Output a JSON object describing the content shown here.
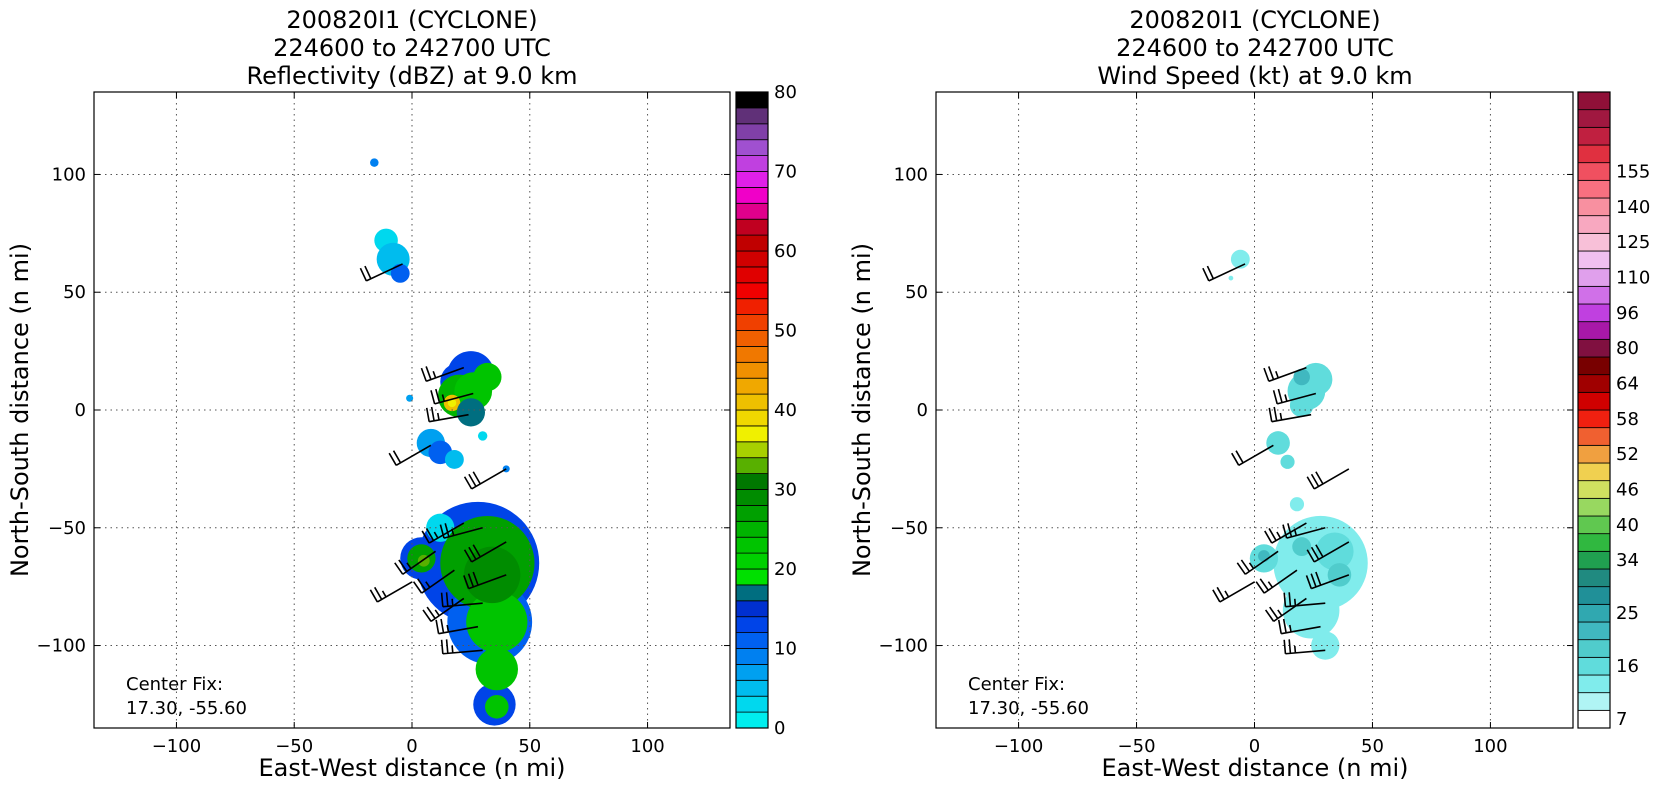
{
  "chart_data": [
    {
      "type": "heatmap",
      "title_lines": [
        "200820I1 (CYCLONE)",
        "224600 to 242700 UTC",
        "Reflectivity (dBZ) at 9.0 km"
      ],
      "xlabel": "East-West distance (n mi)",
      "ylabel": "North-South distance (n mi)",
      "xlim": [
        -135,
        135
      ],
      "ylim": [
        -135,
        135
      ],
      "xticks": [
        -100,
        -50,
        0,
        50,
        100
      ],
      "yticks": [
        -100,
        -50,
        0,
        50,
        100
      ],
      "grid": true,
      "annotation_lines": [
        "Center Fix:",
        "17.30, -55.60"
      ],
      "colorbar": {
        "min": 0,
        "max": 80,
        "ticks": [
          0,
          10,
          20,
          30,
          40,
          50,
          60,
          70,
          80
        ],
        "colors": [
          "#00eeee",
          "#00d8ee",
          "#00bcee",
          "#00a0f0",
          "#0080f0",
          "#0060f0",
          "#0044e8",
          "#0030d0",
          "#006e80",
          "#00e000",
          "#00d000",
          "#00c400",
          "#00b400",
          "#00a000",
          "#008c00",
          "#007800",
          "#58b000",
          "#a8d000",
          "#f0f000",
          "#f0d800",
          "#eec000",
          "#f0a800",
          "#f09000",
          "#f07800",
          "#f06000",
          "#f04000",
          "#f02000",
          "#f00000",
          "#e00000",
          "#d00000",
          "#c00000",
          "#c00020",
          "#e0008c",
          "#f000c8",
          "#e020e8",
          "#c040e0",
          "#a050d0",
          "#8040a8",
          "#603078",
          "#000000"
        ]
      },
      "echoes": [
        {
          "x": -16,
          "y": 105,
          "r": 1.8,
          "level": 4
        },
        {
          "x": -11,
          "y": 72,
          "r": 5,
          "level": 1
        },
        {
          "x": -8,
          "y": 64,
          "r": 7,
          "level": 2
        },
        {
          "x": -5,
          "y": 58,
          "r": 4,
          "level": 5
        },
        {
          "x": -1,
          "y": 5,
          "r": 1.5,
          "level": 3
        },
        {
          "x": 20,
          "y": 12,
          "r": 8,
          "level": 6
        },
        {
          "x": 25,
          "y": 15,
          "r": 10,
          "level": 6
        },
        {
          "x": 20,
          "y": 6,
          "r": 9,
          "level": 12
        },
        {
          "x": 26,
          "y": 8,
          "r": 8,
          "level": 11
        },
        {
          "x": 32,
          "y": 14,
          "r": 6,
          "level": 11
        },
        {
          "x": 17,
          "y": 3,
          "r": 3.5,
          "level": 20
        },
        {
          "x": 17,
          "y": 3,
          "r": 1.8,
          "level": 18
        },
        {
          "x": 25,
          "y": -1,
          "r": 6,
          "level": 8
        },
        {
          "x": 8,
          "y": -14,
          "r": 6,
          "level": 3
        },
        {
          "x": 12,
          "y": -18,
          "r": 5,
          "level": 5
        },
        {
          "x": 18,
          "y": -21,
          "r": 4,
          "level": 2
        },
        {
          "x": 30,
          "y": -11,
          "r": 2,
          "level": 1
        },
        {
          "x": 40,
          "y": -25,
          "r": 1.5,
          "level": 4
        },
        {
          "x": 28,
          "y": -65,
          "r": 26,
          "level": 6
        },
        {
          "x": 33,
          "y": -90,
          "r": 18,
          "level": 5
        },
        {
          "x": 4,
          "y": -63,
          "r": 9,
          "level": 6
        },
        {
          "x": 12,
          "y": -50,
          "r": 6,
          "level": 1
        },
        {
          "x": 35,
          "y": -125,
          "r": 9,
          "level": 6
        },
        {
          "x": 32,
          "y": -65,
          "r": 20,
          "level": 13
        },
        {
          "x": 36,
          "y": -90,
          "r": 13,
          "level": 11
        },
        {
          "x": 4,
          "y": -63,
          "r": 6,
          "level": 13
        },
        {
          "x": 36,
          "y": -110,
          "r": 9,
          "level": 11
        },
        {
          "x": 36,
          "y": -126,
          "r": 5,
          "level": 11
        },
        {
          "x": 34,
          "y": -70,
          "r": 12,
          "level": 14
        },
        {
          "x": 5,
          "y": -64,
          "r": 2.5,
          "level": 16
        }
      ],
      "barbs": [
        {
          "x": 22,
          "y": 18,
          "dir": 250,
          "kt": 25
        },
        {
          "x": 26,
          "y": 7,
          "dir": 255,
          "kt": 25
        },
        {
          "x": 24,
          "y": -2,
          "dir": 260,
          "kt": 25
        },
        {
          "x": 8,
          "y": -15,
          "dir": 240,
          "kt": 20
        },
        {
          "x": 40,
          "y": -25,
          "dir": 240,
          "kt": 30
        },
        {
          "x": 22,
          "y": -48,
          "dir": 240,
          "kt": 25
        },
        {
          "x": 30,
          "y": -50,
          "dir": 255,
          "kt": 25
        },
        {
          "x": 40,
          "y": -56,
          "dir": 240,
          "kt": 30
        },
        {
          "x": 10,
          "y": -60,
          "dir": 235,
          "kt": 25
        },
        {
          "x": 18,
          "y": -68,
          "dir": 235,
          "kt": 25
        },
        {
          "x": 0,
          "y": -73,
          "dir": 240,
          "kt": 25
        },
        {
          "x": 40,
          "y": -70,
          "dir": 250,
          "kt": 30
        },
        {
          "x": 22,
          "y": -80,
          "dir": 235,
          "kt": 25
        },
        {
          "x": 30,
          "y": -82,
          "dir": 265,
          "kt": 25
        },
        {
          "x": 28,
          "y": -92,
          "dir": 260,
          "kt": 25
        },
        {
          "x": 30,
          "y": -102,
          "dir": 265,
          "kt": 25
        },
        {
          "x": -4,
          "y": 62,
          "dir": 245,
          "kt": 20
        }
      ]
    },
    {
      "type": "heatmap",
      "title_lines": [
        "200820I1 (CYCLONE)",
        "224600 to 242700 UTC",
        "Wind Speed (kt) at 9.0 km"
      ],
      "xlabel": "East-West distance (n mi)",
      "ylabel": "North-South distance (n mi)",
      "xlim": [
        -135,
        135
      ],
      "ylim": [
        -135,
        135
      ],
      "xticks": [
        -100,
        -50,
        0,
        50,
        100
      ],
      "yticks": [
        -100,
        -50,
        0,
        50,
        100
      ],
      "grid": true,
      "annotation_lines": [
        "Center Fix:",
        "17.30, -55.60"
      ],
      "colorbar": {
        "tick_labels": [
          "7",
          "16",
          "25",
          "34",
          "40",
          "46",
          "52",
          "58",
          "64",
          "80",
          "96",
          "110",
          "125",
          "140",
          "155"
        ],
        "tick_bin_index": [
          0,
          3,
          6,
          9,
          11,
          13,
          15,
          17,
          19,
          21,
          23,
          25,
          27,
          29,
          31
        ],
        "colors": [
          "#ffffff",
          "#b0f4f4",
          "#80ecec",
          "#60dcdc",
          "#50cccc",
          "#40b8c0",
          "#30a8b0",
          "#209098",
          "#208a80",
          "#20a050",
          "#30b840",
          "#60c850",
          "#98d860",
          "#d0e060",
          "#f0d050",
          "#f0a040",
          "#f06030",
          "#f02010",
          "#d00000",
          "#a00000",
          "#780000",
          "#801040",
          "#a818a8",
          "#c040e0",
          "#d070e8",
          "#e0a0ec",
          "#f0c0f0",
          "#f8c0d8",
          "#f8a8c0",
          "#f890a0",
          "#f87080",
          "#f05060",
          "#e03040",
          "#c02040",
          "#a01840",
          "#901038"
        ]
      },
      "echoes": [
        {
          "x": -6,
          "y": 64,
          "r": 4,
          "level": 2
        },
        {
          "x": -10,
          "y": 56,
          "r": 1,
          "level": 2
        },
        {
          "x": 22,
          "y": 8,
          "r": 8,
          "level": 3
        },
        {
          "x": 26,
          "y": 13,
          "r": 7,
          "level": 3
        },
        {
          "x": 20,
          "y": 2,
          "r": 5,
          "level": 3
        },
        {
          "x": 20,
          "y": 14,
          "r": 3.5,
          "level": 5
        },
        {
          "x": 10,
          "y": -14,
          "r": 5,
          "level": 3
        },
        {
          "x": 14,
          "y": -22,
          "r": 3,
          "level": 3
        },
        {
          "x": 28,
          "y": -65,
          "r": 20,
          "level": 2
        },
        {
          "x": 24,
          "y": -85,
          "r": 12,
          "level": 2
        },
        {
          "x": 30,
          "y": -100,
          "r": 6,
          "level": 2
        },
        {
          "x": 4,
          "y": -63,
          "r": 6,
          "level": 3
        },
        {
          "x": 34,
          "y": -60,
          "r": 8,
          "level": 3
        },
        {
          "x": 36,
          "y": -70,
          "r": 5,
          "level": 4
        },
        {
          "x": 4,
          "y": -62,
          "r": 2.5,
          "level": 5
        },
        {
          "x": 20,
          "y": -58,
          "r": 4,
          "level": 4
        },
        {
          "x": 18,
          "y": -40,
          "r": 3,
          "level": 2
        }
      ],
      "barbs": [
        {
          "x": 22,
          "y": 18,
          "dir": 250,
          "kt": 25
        },
        {
          "x": 26,
          "y": 7,
          "dir": 255,
          "kt": 25
        },
        {
          "x": 24,
          "y": -2,
          "dir": 260,
          "kt": 25
        },
        {
          "x": 8,
          "y": -15,
          "dir": 240,
          "kt": 20
        },
        {
          "x": 40,
          "y": -25,
          "dir": 240,
          "kt": 30
        },
        {
          "x": 22,
          "y": -48,
          "dir": 240,
          "kt": 25
        },
        {
          "x": 30,
          "y": -50,
          "dir": 255,
          "kt": 25
        },
        {
          "x": 40,
          "y": -56,
          "dir": 240,
          "kt": 30
        },
        {
          "x": 10,
          "y": -60,
          "dir": 235,
          "kt": 25
        },
        {
          "x": 18,
          "y": -68,
          "dir": 235,
          "kt": 25
        },
        {
          "x": 0,
          "y": -73,
          "dir": 240,
          "kt": 25
        },
        {
          "x": 40,
          "y": -70,
          "dir": 250,
          "kt": 30
        },
        {
          "x": 22,
          "y": -80,
          "dir": 235,
          "kt": 25
        },
        {
          "x": 30,
          "y": -82,
          "dir": 265,
          "kt": 25
        },
        {
          "x": 28,
          "y": -92,
          "dir": 260,
          "kt": 25
        },
        {
          "x": 30,
          "y": -102,
          "dir": 265,
          "kt": 25
        },
        {
          "x": -4,
          "y": 62,
          "dir": 245,
          "kt": 20
        }
      ]
    }
  ]
}
